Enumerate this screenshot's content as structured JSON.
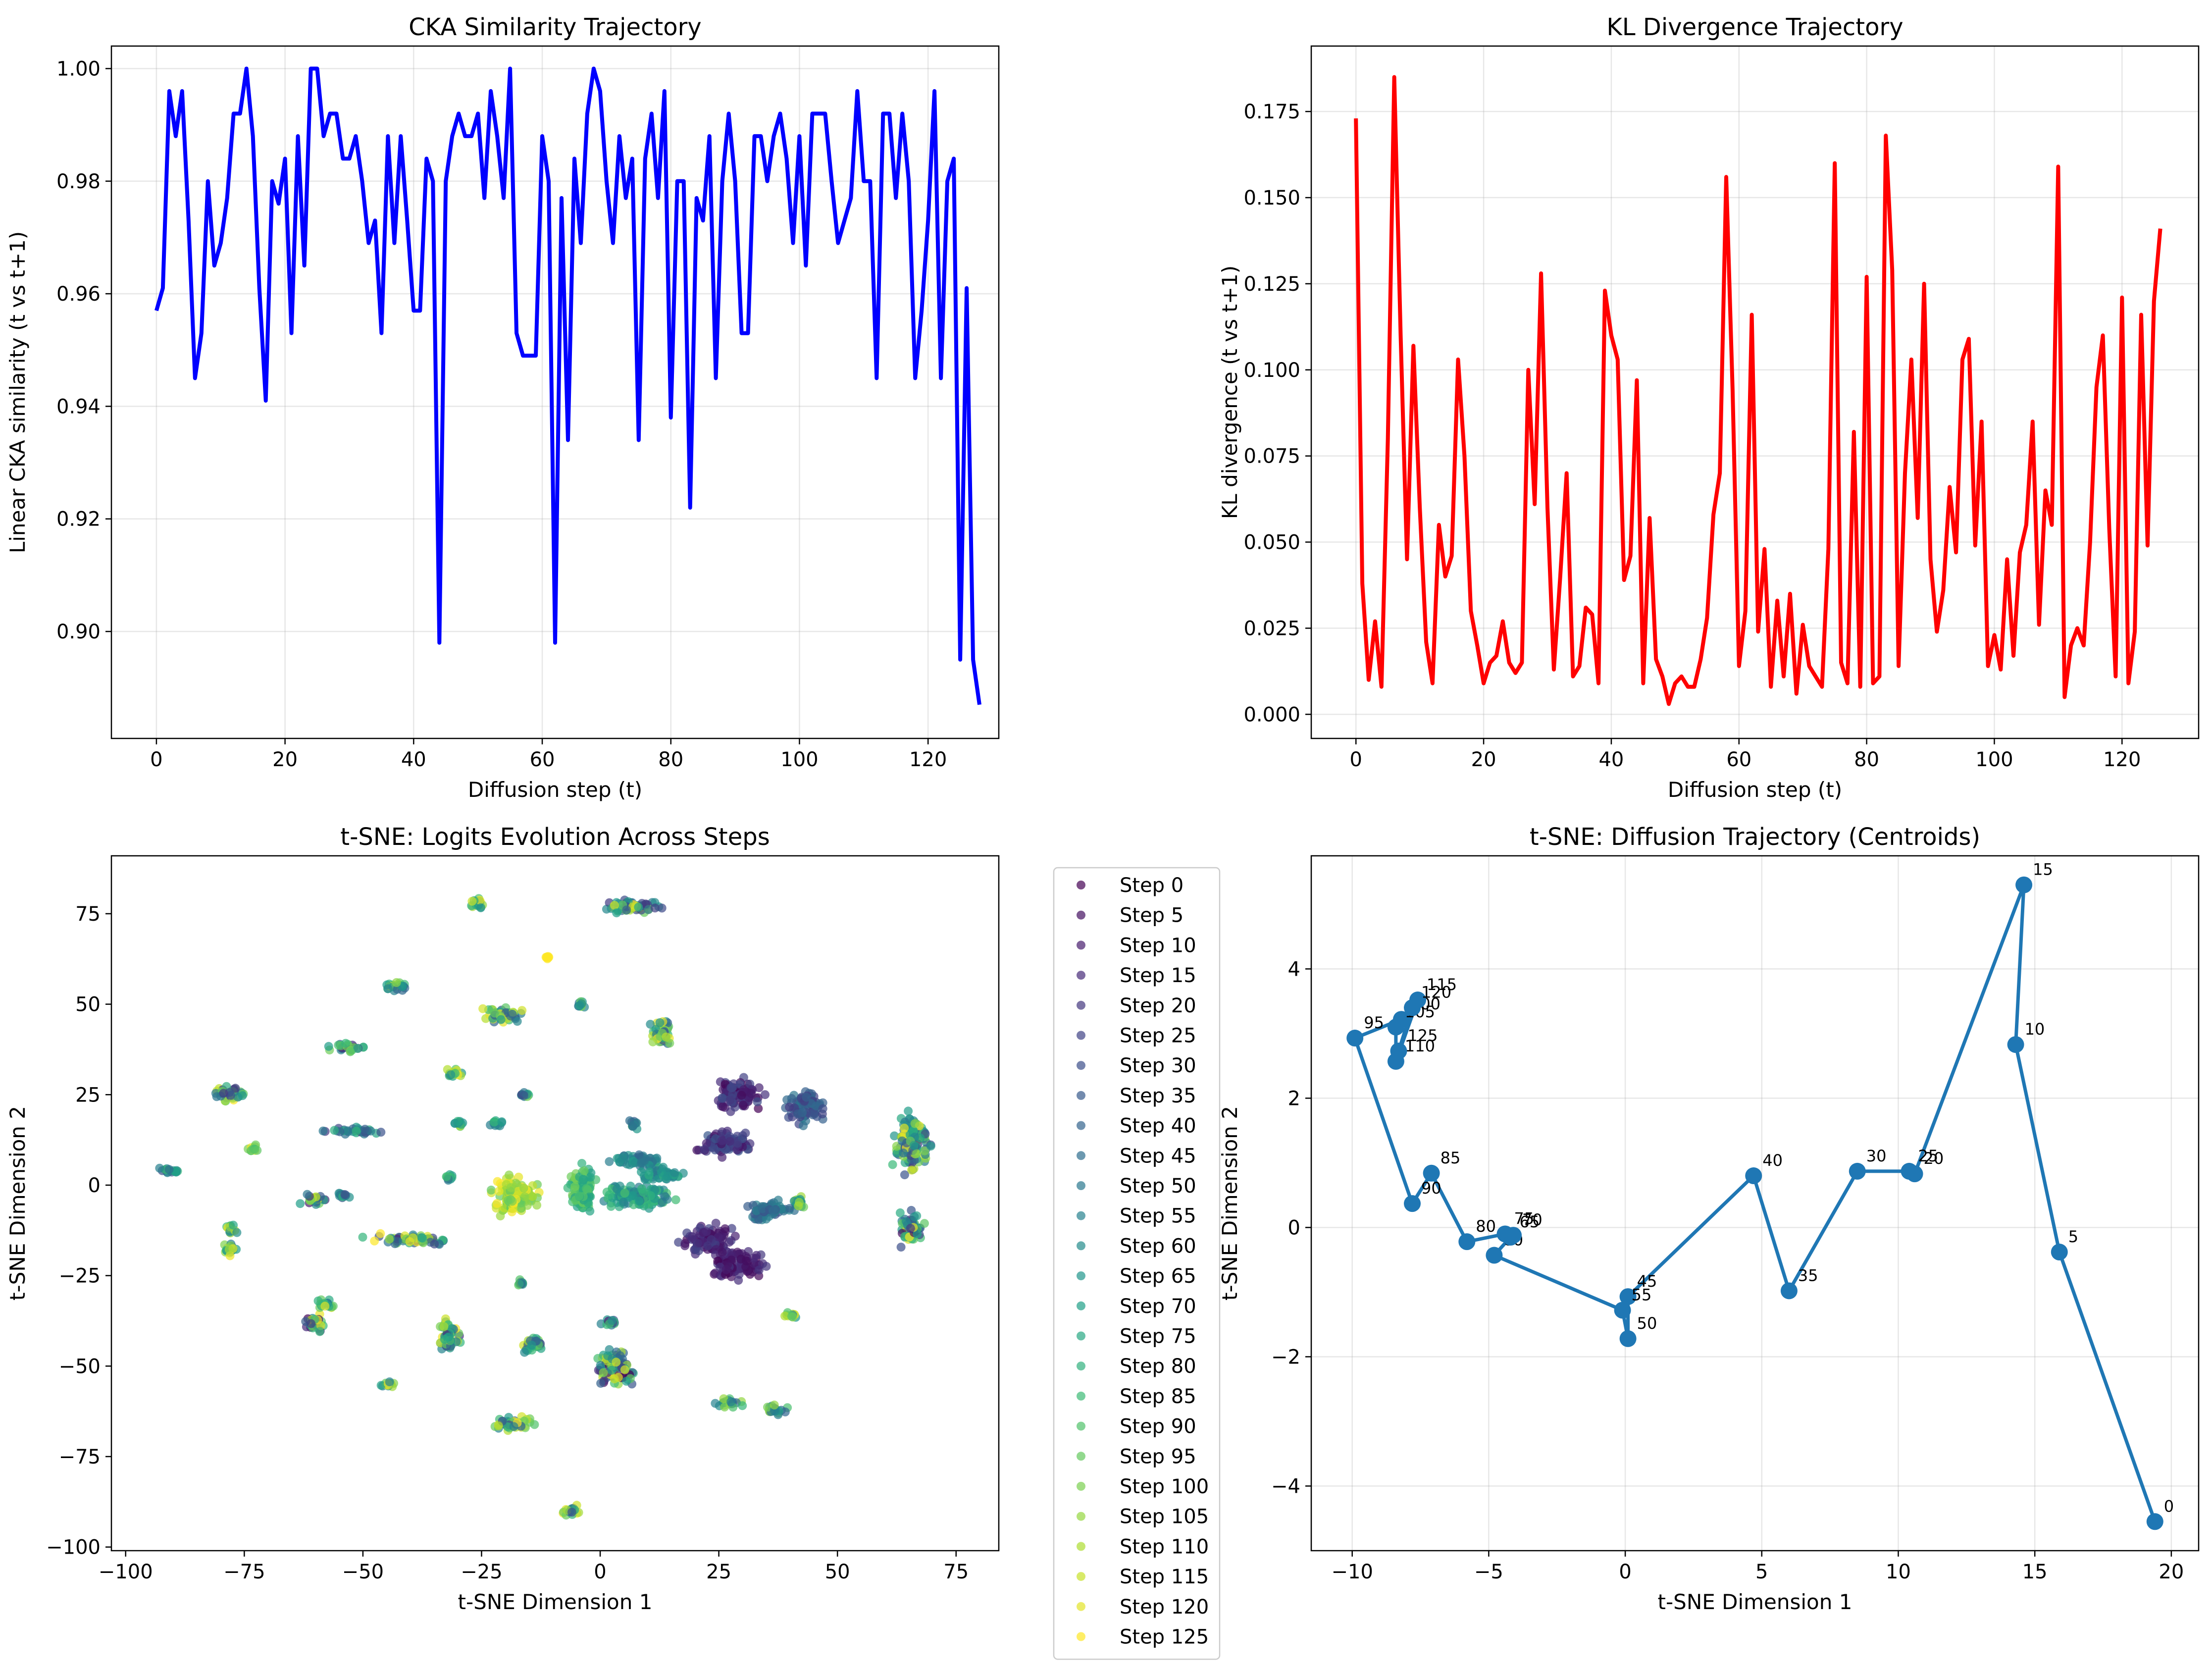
{
  "chart_data": [
    {
      "type": "line",
      "title": "CKA Similarity Trajectory",
      "xlabel": "Diffusion step (t)",
      "ylabel": "Linear CKA similarity (t vs t+1)",
      "xlim": [
        -7,
        131
      ],
      "ylim": [
        0.881,
        1.004
      ],
      "xticks": [
        0,
        20,
        40,
        60,
        80,
        100,
        120
      ],
      "yticks": [
        0.9,
        0.92,
        0.94,
        0.96,
        0.98,
        1.0
      ],
      "ytick_labels": [
        "0.90",
        "0.92",
        "0.94",
        "0.96",
        "0.98",
        "1.00"
      ],
      "grid": true,
      "color": "#0000ff",
      "x_start": 0,
      "values": [
        0.957,
        0.961,
        0.996,
        0.988,
        0.996,
        0.973,
        0.945,
        0.953,
        0.98,
        0.965,
        0.969,
        0.977,
        0.992,
        0.992,
        1.0,
        0.988,
        0.961,
        0.941,
        0.98,
        0.976,
        0.984,
        0.953,
        0.988,
        0.965,
        1.0,
        1.0,
        0.988,
        0.992,
        0.992,
        0.984,
        0.984,
        0.988,
        0.98,
        0.969,
        0.973,
        0.953,
        0.988,
        0.969,
        0.988,
        0.973,
        0.957,
        0.957,
        0.984,
        0.98,
        0.898,
        0.98,
        0.988,
        0.992,
        0.988,
        0.988,
        0.992,
        0.977,
        0.996,
        0.988,
        0.977,
        1.0,
        0.953,
        0.949,
        0.949,
        0.949,
        0.988,
        0.98,
        0.898,
        0.977,
        0.934,
        0.984,
        0.969,
        0.992,
        1.0,
        0.996,
        0.98,
        0.969,
        0.988,
        0.977,
        0.984,
        0.934,
        0.984,
        0.992,
        0.977,
        0.996,
        0.938,
        0.98,
        0.98,
        0.922,
        0.977,
        0.973,
        0.988,
        0.945,
        0.98,
        0.992,
        0.98,
        0.953,
        0.953,
        0.988,
        0.988,
        0.98,
        0.988,
        0.992,
        0.984,
        0.969,
        0.988,
        0.965,
        0.992,
        0.992,
        0.992,
        0.98,
        0.969,
        0.973,
        0.977,
        0.996,
        0.98,
        0.98,
        0.945,
        0.992,
        0.992,
        0.977,
        0.992,
        0.98,
        0.945,
        0.957,
        0.973,
        0.996,
        0.945,
        0.98,
        0.984,
        0.895,
        0.961,
        0.895,
        0.887
      ]
    },
    {
      "type": "line",
      "title": "KL Divergence Trajectory",
      "xlabel": "Diffusion step (t)",
      "ylabel": "KL divergence (t vs t+1)",
      "xlim": [
        -7,
        132
      ],
      "ylim": [
        -0.007,
        0.194
      ],
      "xticks": [
        0,
        20,
        40,
        60,
        80,
        100,
        120
      ],
      "yticks": [
        0.0,
        0.025,
        0.05,
        0.075,
        0.1,
        0.125,
        0.15,
        0.175
      ],
      "ytick_labels": [
        "0.000",
        "0.025",
        "0.050",
        "0.075",
        "0.100",
        "0.125",
        "0.150",
        "0.175"
      ],
      "grid": true,
      "color": "#ff0000",
      "x_start": 0,
      "values": [
        0.173,
        0.038,
        0.01,
        0.027,
        0.008,
        0.08,
        0.185,
        0.11,
        0.045,
        0.107,
        0.06,
        0.021,
        0.009,
        0.055,
        0.04,
        0.046,
        0.103,
        0.075,
        0.03,
        0.02,
        0.009,
        0.015,
        0.017,
        0.027,
        0.015,
        0.012,
        0.015,
        0.1,
        0.061,
        0.128,
        0.06,
        0.013,
        0.04,
        0.07,
        0.011,
        0.014,
        0.031,
        0.029,
        0.009,
        0.123,
        0.11,
        0.103,
        0.039,
        0.046,
        0.097,
        0.009,
        0.057,
        0.016,
        0.011,
        0.003,
        0.009,
        0.011,
        0.008,
        0.008,
        0.016,
        0.028,
        0.058,
        0.07,
        0.156,
        0.094,
        0.014,
        0.03,
        0.116,
        0.024,
        0.048,
        0.008,
        0.033,
        0.011,
        0.035,
        0.006,
        0.026,
        0.014,
        0.011,
        0.008,
        0.048,
        0.16,
        0.015,
        0.009,
        0.082,
        0.008,
        0.127,
        0.009,
        0.011,
        0.168,
        0.129,
        0.014,
        0.07,
        0.103,
        0.057,
        0.125,
        0.045,
        0.024,
        0.036,
        0.066,
        0.047,
        0.103,
        0.109,
        0.049,
        0.085,
        0.014,
        0.023,
        0.013,
        0.045,
        0.017,
        0.047,
        0.055,
        0.085,
        0.026,
        0.065,
        0.055,
        0.159,
        0.005,
        0.02,
        0.025,
        0.02,
        0.05,
        0.095,
        0.11,
        0.054,
        0.011,
        0.121,
        0.009,
        0.024,
        0.116,
        0.049,
        0.12,
        0.141
      ]
    },
    {
      "type": "scatter",
      "title": "t-SNE: Logits Evolution Across Steps",
      "xlabel": "t-SNE Dimension 1",
      "ylabel": "t-SNE Dimension 2",
      "xlim": [
        -103,
        84
      ],
      "ylim": [
        -101,
        91
      ],
      "xticks": [
        -100,
        -75,
        -50,
        -25,
        0,
        25,
        50,
        75
      ],
      "yticks": [
        -100,
        -75,
        -50,
        -25,
        0,
        25,
        50,
        75
      ],
      "grid": false,
      "colormap": "viridis",
      "legend": {
        "placement": "outside-right",
        "entries": [
          "Step 0",
          "Step 5",
          "Step 10",
          "Step 15",
          "Step 20",
          "Step 25",
          "Step 30",
          "Step 35",
          "Step 40",
          "Step 45",
          "Step 50",
          "Step 55",
          "Step 60",
          "Step 65",
          "Step 70",
          "Step 75",
          "Step 80",
          "Step 85",
          "Step 90",
          "Step 95",
          "Step 100",
          "Step 105",
          "Step 110",
          "Step 115",
          "Step 120",
          "Step 125"
        ]
      },
      "clusters": [
        {
          "x": -91,
          "y": 4,
          "w": 6,
          "h": 2,
          "s": [
            30,
            90
          ]
        },
        {
          "x": -78,
          "y": 25,
          "w": 7,
          "h": 5,
          "s": [
            20,
            125
          ]
        },
        {
          "x": -73,
          "y": 10,
          "w": 3,
          "h": 2,
          "s": [
            80,
            125
          ]
        },
        {
          "x": -78,
          "y": -12,
          "w": 3,
          "h": 3,
          "s": [
            60,
            125
          ]
        },
        {
          "x": -78,
          "y": -18,
          "w": 4,
          "h": 3,
          "s": [
            40,
            125
          ]
        },
        {
          "x": -60,
          "y": -38,
          "w": 5,
          "h": 5,
          "s": [
            0,
            125
          ]
        },
        {
          "x": -58,
          "y": -33,
          "w": 4,
          "h": 3,
          "s": [
            40,
            125
          ]
        },
        {
          "x": -60,
          "y": -4,
          "w": 6,
          "h": 3,
          "s": [
            10,
            120
          ]
        },
        {
          "x": -54,
          "y": -3,
          "w": 3,
          "h": 2,
          "s": [
            20,
            80
          ]
        },
        {
          "x": -53,
          "y": 38,
          "w": 8,
          "h": 3,
          "s": [
            0,
            125
          ]
        },
        {
          "x": -52,
          "y": 15,
          "w": 14,
          "h": 2,
          "s": [
            20,
            90
          ]
        },
        {
          "x": -43,
          "y": 55,
          "w": 6,
          "h": 3,
          "s": [
            40,
            125
          ]
        },
        {
          "x": -40,
          "y": -15,
          "w": 20,
          "h": 3,
          "s": [
            10,
            125
          ]
        },
        {
          "x": -31,
          "y": 31,
          "w": 4,
          "h": 3,
          "s": [
            60,
            125
          ]
        },
        {
          "x": -30,
          "y": 17,
          "w": 3,
          "h": 2,
          "s": [
            30,
            110
          ]
        },
        {
          "x": -32,
          "y": 2,
          "w": 2,
          "h": 2,
          "s": [
            40,
            90
          ]
        },
        {
          "x": -45,
          "y": -55,
          "w": 4,
          "h": 2,
          "s": [
            40,
            125
          ]
        },
        {
          "x": -32,
          "y": -42,
          "w": 5,
          "h": 10,
          "s": [
            10,
            125
          ]
        },
        {
          "x": -26,
          "y": 78,
          "w": 3,
          "h": 4,
          "s": [
            60,
            125
          ]
        },
        {
          "x": -20,
          "y": 47,
          "w": 9,
          "h": 5,
          "s": [
            30,
            125
          ]
        },
        {
          "x": -22,
          "y": 17,
          "w": 3,
          "h": 2,
          "s": [
            40,
            90
          ]
        },
        {
          "x": -16,
          "y": 25,
          "w": 2,
          "h": 2,
          "s": [
            20,
            100
          ]
        },
        {
          "x": -17,
          "y": -27,
          "w": 3,
          "h": 2,
          "s": [
            10,
            110
          ]
        },
        {
          "x": -14,
          "y": -44,
          "w": 5,
          "h": 6,
          "s": [
            20,
            125
          ]
        },
        {
          "x": -18,
          "y": -66,
          "w": 9,
          "h": 4,
          "s": [
            30,
            125
          ]
        },
        {
          "x": -6,
          "y": -90,
          "w": 4,
          "h": 3,
          "s": [
            30,
            125
          ]
        },
        {
          "x": -4,
          "y": 50,
          "w": 2,
          "h": 2,
          "s": [
            40,
            100
          ]
        },
        {
          "x": 7,
          "y": 77,
          "w": 14,
          "h": 4,
          "s": [
            20,
            125
          ]
        },
        {
          "x": 13,
          "y": 42,
          "w": 6,
          "h": 8,
          "s": [
            30,
            125
          ]
        },
        {
          "x": 7,
          "y": 17,
          "w": 2,
          "h": 3,
          "s": [
            30,
            100
          ]
        },
        {
          "x": 3,
          "y": -50,
          "w": 8,
          "h": 12,
          "s": [
            0,
            125
          ]
        },
        {
          "x": 2,
          "y": -38,
          "w": 4,
          "h": 2,
          "s": [
            10,
            90
          ]
        },
        {
          "x": 27,
          "y": -60,
          "w": 6,
          "h": 3,
          "s": [
            40,
            110
          ]
        },
        {
          "x": 37,
          "y": -62,
          "w": 5,
          "h": 3,
          "s": [
            30,
            110
          ]
        },
        {
          "x": 40,
          "y": -36,
          "w": 3,
          "h": 2,
          "s": [
            60,
            125
          ]
        },
        {
          "x": 42,
          "y": -5,
          "w": 3,
          "h": 5,
          "s": [
            40,
            110
          ]
        },
        {
          "x": 66,
          "y": 12,
          "w": 8,
          "h": 16,
          "s": [
            20,
            125
          ]
        },
        {
          "x": 65,
          "y": -12,
          "w": 6,
          "h": 10,
          "s": [
            0,
            125
          ]
        },
        {
          "x": -18,
          "y": -3,
          "w": 10,
          "h": 12,
          "s": [
            90,
            125
          ]
        },
        {
          "x": -4,
          "y": -1,
          "w": 6,
          "h": 14,
          "s": [
            70,
            100
          ]
        },
        {
          "x": 8,
          "y": -3,
          "w": 16,
          "h": 7,
          "s": [
            50,
            90
          ]
        },
        {
          "x": 8,
          "y": 7,
          "w": 12,
          "h": 4,
          "s": [
            40,
            70
          ]
        },
        {
          "x": 13,
          "y": 3,
          "w": 9,
          "h": 5,
          "s": [
            50,
            80
          ]
        },
        {
          "x": 29,
          "y": 25,
          "w": 10,
          "h": 10,
          "s": [
            0,
            30
          ]
        },
        {
          "x": 26,
          "y": 12,
          "w": 12,
          "h": 8,
          "s": [
            5,
            35
          ]
        },
        {
          "x": 23,
          "y": -15,
          "w": 12,
          "h": 8,
          "s": [
            0,
            25
          ]
        },
        {
          "x": 29,
          "y": -22,
          "w": 12,
          "h": 9,
          "s": [
            0,
            20
          ]
        },
        {
          "x": 43,
          "y": 22,
          "w": 9,
          "h": 10,
          "s": [
            20,
            50
          ]
        },
        {
          "x": 35,
          "y": -7,
          "w": 9,
          "h": 6,
          "s": [
            30,
            60
          ]
        },
        {
          "x": -11,
          "y": 63,
          "w": 1,
          "h": 1,
          "s": [
            125,
            125
          ]
        }
      ]
    },
    {
      "type": "line",
      "title": "t-SNE: Diffusion Trajectory (Centroids)",
      "xlabel": "t-SNE Dimension 1",
      "ylabel": "t-SNE Dimension 2",
      "xlim": [
        -11.5,
        21
      ],
      "ylim": [
        -5.0,
        5.75
      ],
      "xticks": [
        -10,
        -5,
        0,
        5,
        10,
        15,
        20
      ],
      "yticks": [
        -4,
        -2,
        0,
        2,
        4
      ],
      "grid": true,
      "color": "#1f77b4",
      "points": [
        {
          "x": 19.4,
          "y": -4.55,
          "label": "0"
        },
        {
          "x": 15.9,
          "y": -0.38,
          "label": "5"
        },
        {
          "x": 14.3,
          "y": 2.83,
          "label": "10"
        },
        {
          "x": 14.6,
          "y": 5.3,
          "label": "15"
        },
        {
          "x": 10.6,
          "y": 0.83,
          "label": "20"
        },
        {
          "x": 10.4,
          "y": 0.87,
          "label": "25"
        },
        {
          "x": 8.5,
          "y": 0.87,
          "label": "30"
        },
        {
          "x": 6.0,
          "y": -0.98,
          "label": "35"
        },
        {
          "x": 4.7,
          "y": 0.8,
          "label": "40"
        },
        {
          "x": 0.1,
          "y": -1.07,
          "label": "45"
        },
        {
          "x": 0.1,
          "y": -1.72,
          "label": "50"
        },
        {
          "x": -0.1,
          "y": -1.28,
          "label": "55"
        },
        {
          "x": -4.8,
          "y": -0.43,
          "label": "60"
        },
        {
          "x": -4.2,
          "y": -0.15,
          "label": "65"
        },
        {
          "x": -4.1,
          "y": -0.12,
          "label": "70"
        },
        {
          "x": -4.4,
          "y": -0.1,
          "label": "75"
        },
        {
          "x": -5.8,
          "y": -0.22,
          "label": "80"
        },
        {
          "x": -7.1,
          "y": 0.84,
          "label": "85"
        },
        {
          "x": -7.8,
          "y": 0.37,
          "label": "90"
        },
        {
          "x": -9.9,
          "y": 2.93,
          "label": "95"
        },
        {
          "x": -8.2,
          "y": 3.22,
          "label": "100"
        },
        {
          "x": -8.4,
          "y": 3.1,
          "label": "105"
        },
        {
          "x": -8.4,
          "y": 2.57,
          "label": "110"
        },
        {
          "x": -7.6,
          "y": 3.52,
          "label": "115"
        },
        {
          "x": -7.8,
          "y": 3.4,
          "label": "120"
        },
        {
          "x": -8.3,
          "y": 2.73,
          "label": "125"
        }
      ]
    }
  ]
}
